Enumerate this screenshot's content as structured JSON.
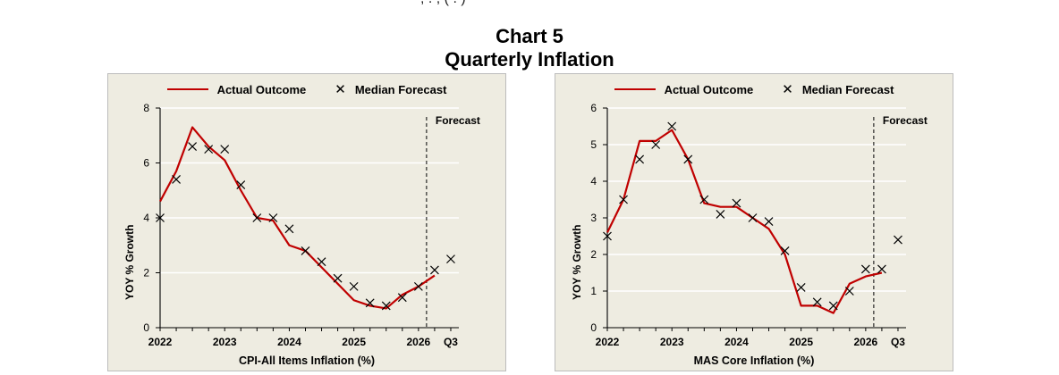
{
  "page": {
    "top_fragment": ", . , ( . ) ",
    "title_line1": "Chart 5",
    "title_line2": "Quarterly Inflation"
  },
  "chart_data": [
    {
      "type": "line",
      "legend": [
        "Actual Outcome",
        "Median Forecast"
      ],
      "ylabel": "YOY % Growth",
      "xlabel": "CPI-All Items Inflation (%)",
      "annotation": "Forecast",
      "ylim": [
        0,
        8
      ],
      "yticks": [
        0,
        2,
        4,
        6,
        8
      ],
      "x_tick_labels": [
        "2022",
        "2023",
        "2024",
        "2025",
        "2026",
        "Q3"
      ],
      "x_tick_positions": [
        0,
        4,
        8,
        12,
        16,
        18
      ],
      "forecast_line_x": 16.5,
      "grid": true,
      "legend_position": "top",
      "series": [
        {
          "name": "Actual Outcome",
          "style": "line",
          "color": "#c00000",
          "x": [
            0,
            1,
            2,
            3,
            4,
            5,
            6,
            7,
            8,
            9,
            10,
            11,
            12,
            13,
            14,
            15,
            16,
            17
          ],
          "values": [
            4.6,
            5.7,
            7.3,
            6.6,
            6.1,
            5.0,
            4.0,
            3.9,
            3.0,
            2.8,
            2.2,
            1.6,
            1.0,
            0.8,
            0.7,
            1.2,
            1.5,
            1.9
          ]
        },
        {
          "name": "Median Forecast",
          "style": "marker-x",
          "color": "#000000",
          "x": [
            0,
            1,
            2,
            3,
            4,
            5,
            6,
            7,
            8,
            9,
            10,
            11,
            12,
            13,
            14,
            15,
            16,
            17,
            18
          ],
          "values": [
            4.0,
            5.4,
            6.6,
            6.5,
            6.5,
            5.2,
            4.0,
            4.0,
            3.6,
            2.8,
            2.4,
            1.8,
            1.5,
            0.9,
            0.8,
            1.1,
            1.5,
            2.1,
            2.5
          ]
        }
      ]
    },
    {
      "type": "line",
      "legend": [
        "Actual Outcome",
        "Median Forecast"
      ],
      "ylabel": "YOY % Growth",
      "xlabel": "MAS Core Inflation (%)",
      "annotation": "Forecast",
      "ylim": [
        0,
        6
      ],
      "yticks": [
        0,
        1,
        2,
        3,
        4,
        5,
        6
      ],
      "x_tick_labels": [
        "2022",
        "2023",
        "2024",
        "2025",
        "2026",
        "Q3"
      ],
      "x_tick_positions": [
        0,
        4,
        8,
        12,
        16,
        18
      ],
      "forecast_line_x": 16.5,
      "grid": true,
      "legend_position": "top",
      "series": [
        {
          "name": "Actual Outcome",
          "style": "line",
          "color": "#c00000",
          "x": [
            0,
            1,
            2,
            3,
            4,
            5,
            6,
            7,
            8,
            9,
            10,
            11,
            12,
            13,
            14,
            15,
            16,
            17
          ],
          "values": [
            2.6,
            3.5,
            5.1,
            5.1,
            5.4,
            4.6,
            3.4,
            3.3,
            3.3,
            3.0,
            2.7,
            2.0,
            0.6,
            0.6,
            0.4,
            1.2,
            1.4,
            1.5
          ]
        },
        {
          "name": "Median Forecast",
          "style": "marker-x",
          "color": "#000000",
          "x": [
            0,
            1,
            2,
            3,
            4,
            5,
            6,
            7,
            8,
            9,
            10,
            11,
            12,
            13,
            14,
            15,
            16,
            17,
            18
          ],
          "values": [
            2.5,
            3.5,
            4.6,
            5.0,
            5.5,
            4.6,
            3.5,
            3.1,
            3.4,
            3.0,
            2.9,
            2.1,
            1.1,
            0.7,
            0.6,
            1.0,
            1.6,
            1.6,
            2.4
          ]
        }
      ]
    }
  ]
}
